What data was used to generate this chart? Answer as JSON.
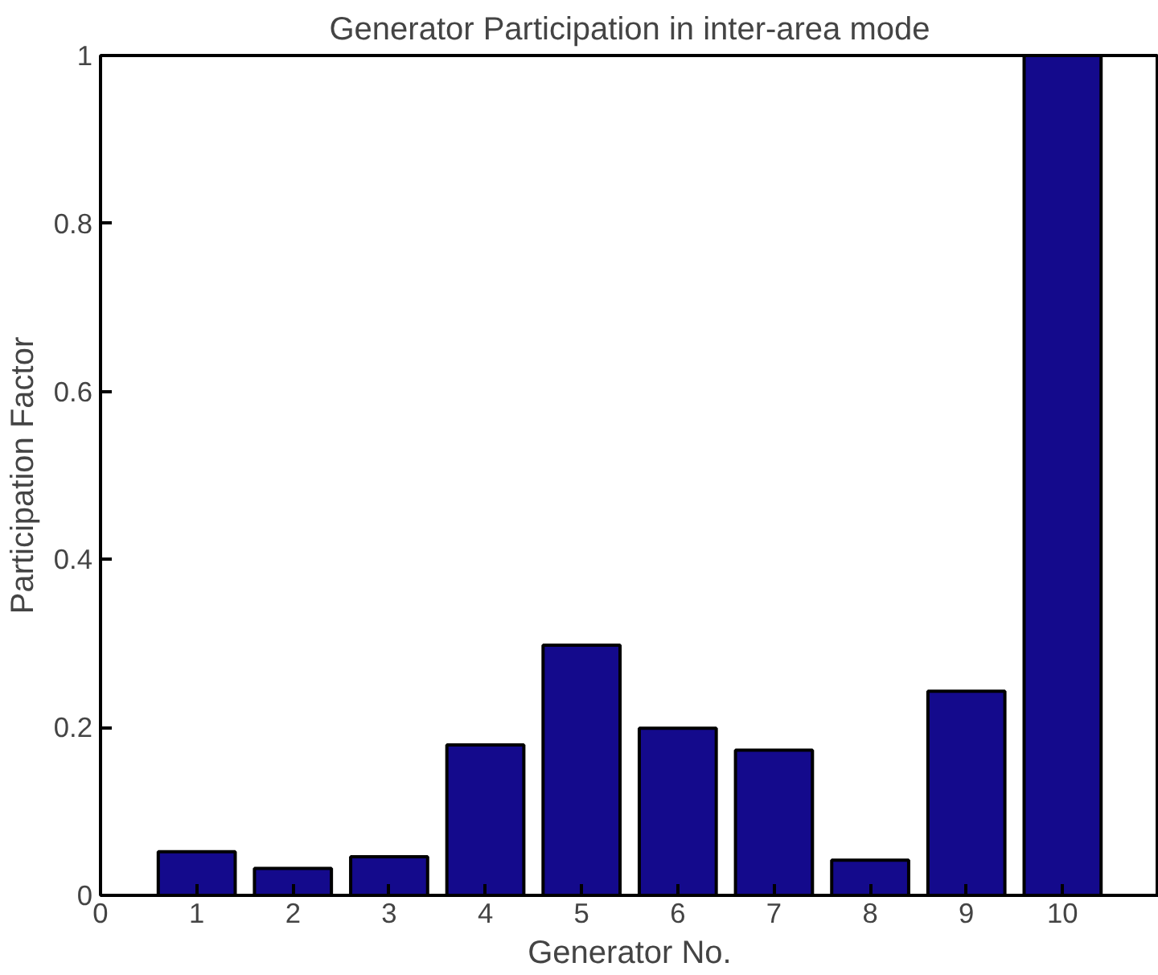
{
  "chart_data": {
    "type": "bar",
    "title": "Generator Participation in inter-area mode",
    "xlabel": "Generator No.",
    "ylabel": "Participation Factor",
    "x": [
      1,
      2,
      3,
      4,
      5,
      6,
      7,
      8,
      9,
      10
    ],
    "values": [
      0.052,
      0.032,
      0.046,
      0.179,
      0.298,
      0.199,
      0.173,
      0.042,
      0.243,
      1
    ],
    "color": "#140a8c",
    "xlim": [
      0,
      11
    ],
    "xticks": [
      0,
      1,
      2,
      3,
      4,
      5,
      6,
      7,
      8,
      9,
      10
    ],
    "ylim": [
      0,
      1
    ],
    "yticks": [
      0,
      0.2,
      0.4,
      0.6,
      0.8,
      1
    ],
    "grid": false
  }
}
